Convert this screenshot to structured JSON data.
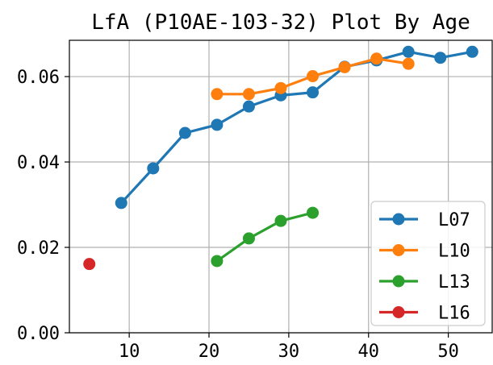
{
  "chart_data": {
    "type": "line",
    "title": "LfA (P10AE-103-32) Plot By Age",
    "xlabel": "",
    "ylabel": "",
    "xlim": [
      2.5,
      55.5
    ],
    "ylim": [
      0.0,
      0.0685
    ],
    "xticks": [
      10,
      20,
      30,
      40,
      50
    ],
    "xtick_labels": [
      "10",
      "20",
      "30",
      "40",
      "50"
    ],
    "yticks": [
      0.0,
      0.02,
      0.04,
      0.06
    ],
    "ytick_labels": [
      "0.00",
      "0.02",
      "0.04",
      "0.06"
    ],
    "grid": true,
    "legend_position": "lower-right",
    "series": [
      {
        "name": "L07",
        "color": "#1f77b4",
        "x": [
          9,
          13,
          17,
          21,
          25,
          29,
          33,
          37,
          41,
          45,
          49,
          53
        ],
        "y": [
          0.0304,
          0.0385,
          0.0468,
          0.0487,
          0.053,
          0.0556,
          0.0563,
          0.0623,
          0.0638,
          0.0658,
          0.0644,
          0.0658
        ]
      },
      {
        "name": "L10",
        "color": "#ff7f0e",
        "x": [
          21,
          25,
          29,
          33,
          37,
          41,
          45
        ],
        "y": [
          0.0559,
          0.0559,
          0.0573,
          0.0601,
          0.0622,
          0.0642,
          0.063
        ]
      },
      {
        "name": "L13",
        "color": "#2ca02c",
        "x": [
          21,
          25,
          29,
          33
        ],
        "y": [
          0.0168,
          0.0221,
          0.0262,
          0.0281
        ]
      },
      {
        "name": "L16",
        "color": "#d62728",
        "x": [
          5
        ],
        "y": [
          0.0161
        ]
      }
    ]
  }
}
